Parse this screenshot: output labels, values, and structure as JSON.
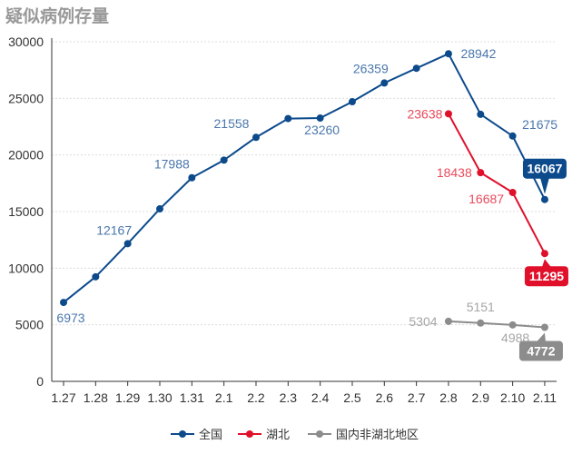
{
  "chart_data": {
    "type": "line",
    "title": "疑似病例存量",
    "xlabel": "",
    "ylabel": "",
    "ylim": [
      0,
      30000
    ],
    "yticks": [
      0,
      5000,
      10000,
      15000,
      20000,
      25000,
      30000
    ],
    "grid": true,
    "legend_position": "bottom-center",
    "categories": [
      "1.27",
      "1.28",
      "1.29",
      "1.30",
      "1.31",
      "2.1",
      "2.2",
      "2.3",
      "2.4",
      "2.5",
      "2.6",
      "2.7",
      "2.8",
      "2.9",
      "2.10",
      "2.11"
    ],
    "series": [
      {
        "name": "全国",
        "color": "#0c4a8c",
        "label_color": "#4a77ad",
        "values": [
          6973,
          9239,
          12167,
          15238,
          17988,
          19544,
          21558,
          23214,
          23260,
          24702,
          26359,
          27657,
          28942,
          23589,
          21675,
          16067
        ],
        "labeled_indices": [
          0,
          2,
          4,
          6,
          8,
          10,
          12,
          14
        ],
        "callout_index": 15
      },
      {
        "name": "湖北",
        "color": "#e0102b",
        "label_color": "#e84a5c",
        "values": [
          null,
          null,
          null,
          null,
          null,
          null,
          null,
          null,
          null,
          null,
          null,
          null,
          23638,
          18438,
          16687,
          11295
        ],
        "labeled_indices": [
          12,
          13,
          14
        ],
        "callout_index": 15
      },
      {
        "name": "国内非湖北地区",
        "color": "#8c8c8c",
        "label_color": "#a6a6a6",
        "values": [
          null,
          null,
          null,
          null,
          null,
          null,
          null,
          null,
          null,
          null,
          null,
          null,
          5304,
          5151,
          4988,
          4772
        ],
        "labeled_indices": [
          12,
          13,
          14
        ],
        "callout_index": 15
      }
    ]
  }
}
